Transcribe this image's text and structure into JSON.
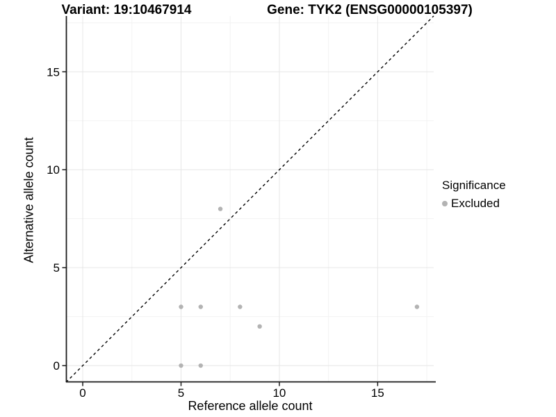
{
  "chart_data": {
    "type": "scatter",
    "title_left": "Variant: 19:10467914",
    "title_right": "Gene: TYK2 (ENSG00000105397)",
    "xlabel": "Reference allele count",
    "ylabel": "Alternative allele count",
    "xlim": [
      -0.85,
      17.85
    ],
    "ylim": [
      -0.85,
      17.85
    ],
    "x_ticks": [
      0,
      5,
      10,
      15
    ],
    "y_ticks": [
      0,
      5,
      10,
      15
    ],
    "x_minor_ticks": [
      2.5,
      7.5,
      12.5,
      17.5
    ],
    "y_minor_ticks": [
      2.5,
      7.5,
      12.5,
      17.5
    ],
    "grid": "on",
    "series": [
      {
        "name": "Excluded",
        "color": "#b3b3b3",
        "points": [
          [
            5,
            0
          ],
          [
            6,
            0
          ],
          [
            9,
            2
          ],
          [
            5,
            3
          ],
          [
            6,
            3
          ],
          [
            8,
            3
          ],
          [
            17,
            3
          ],
          [
            7,
            8
          ]
        ]
      }
    ],
    "reference_line": {
      "slope": 1,
      "intercept": 0,
      "style": "dashed",
      "color": "#000000"
    },
    "legend": {
      "position": "right",
      "title": "Significance",
      "items": [
        {
          "label": "Excluded",
          "color": "#b3b3b3"
        }
      ]
    },
    "colors": {
      "major_grid": "#e6e6e6",
      "minor_grid": "#f2f2f2",
      "axis": "#1a1a1a",
      "point": "#b3b3b3"
    }
  }
}
